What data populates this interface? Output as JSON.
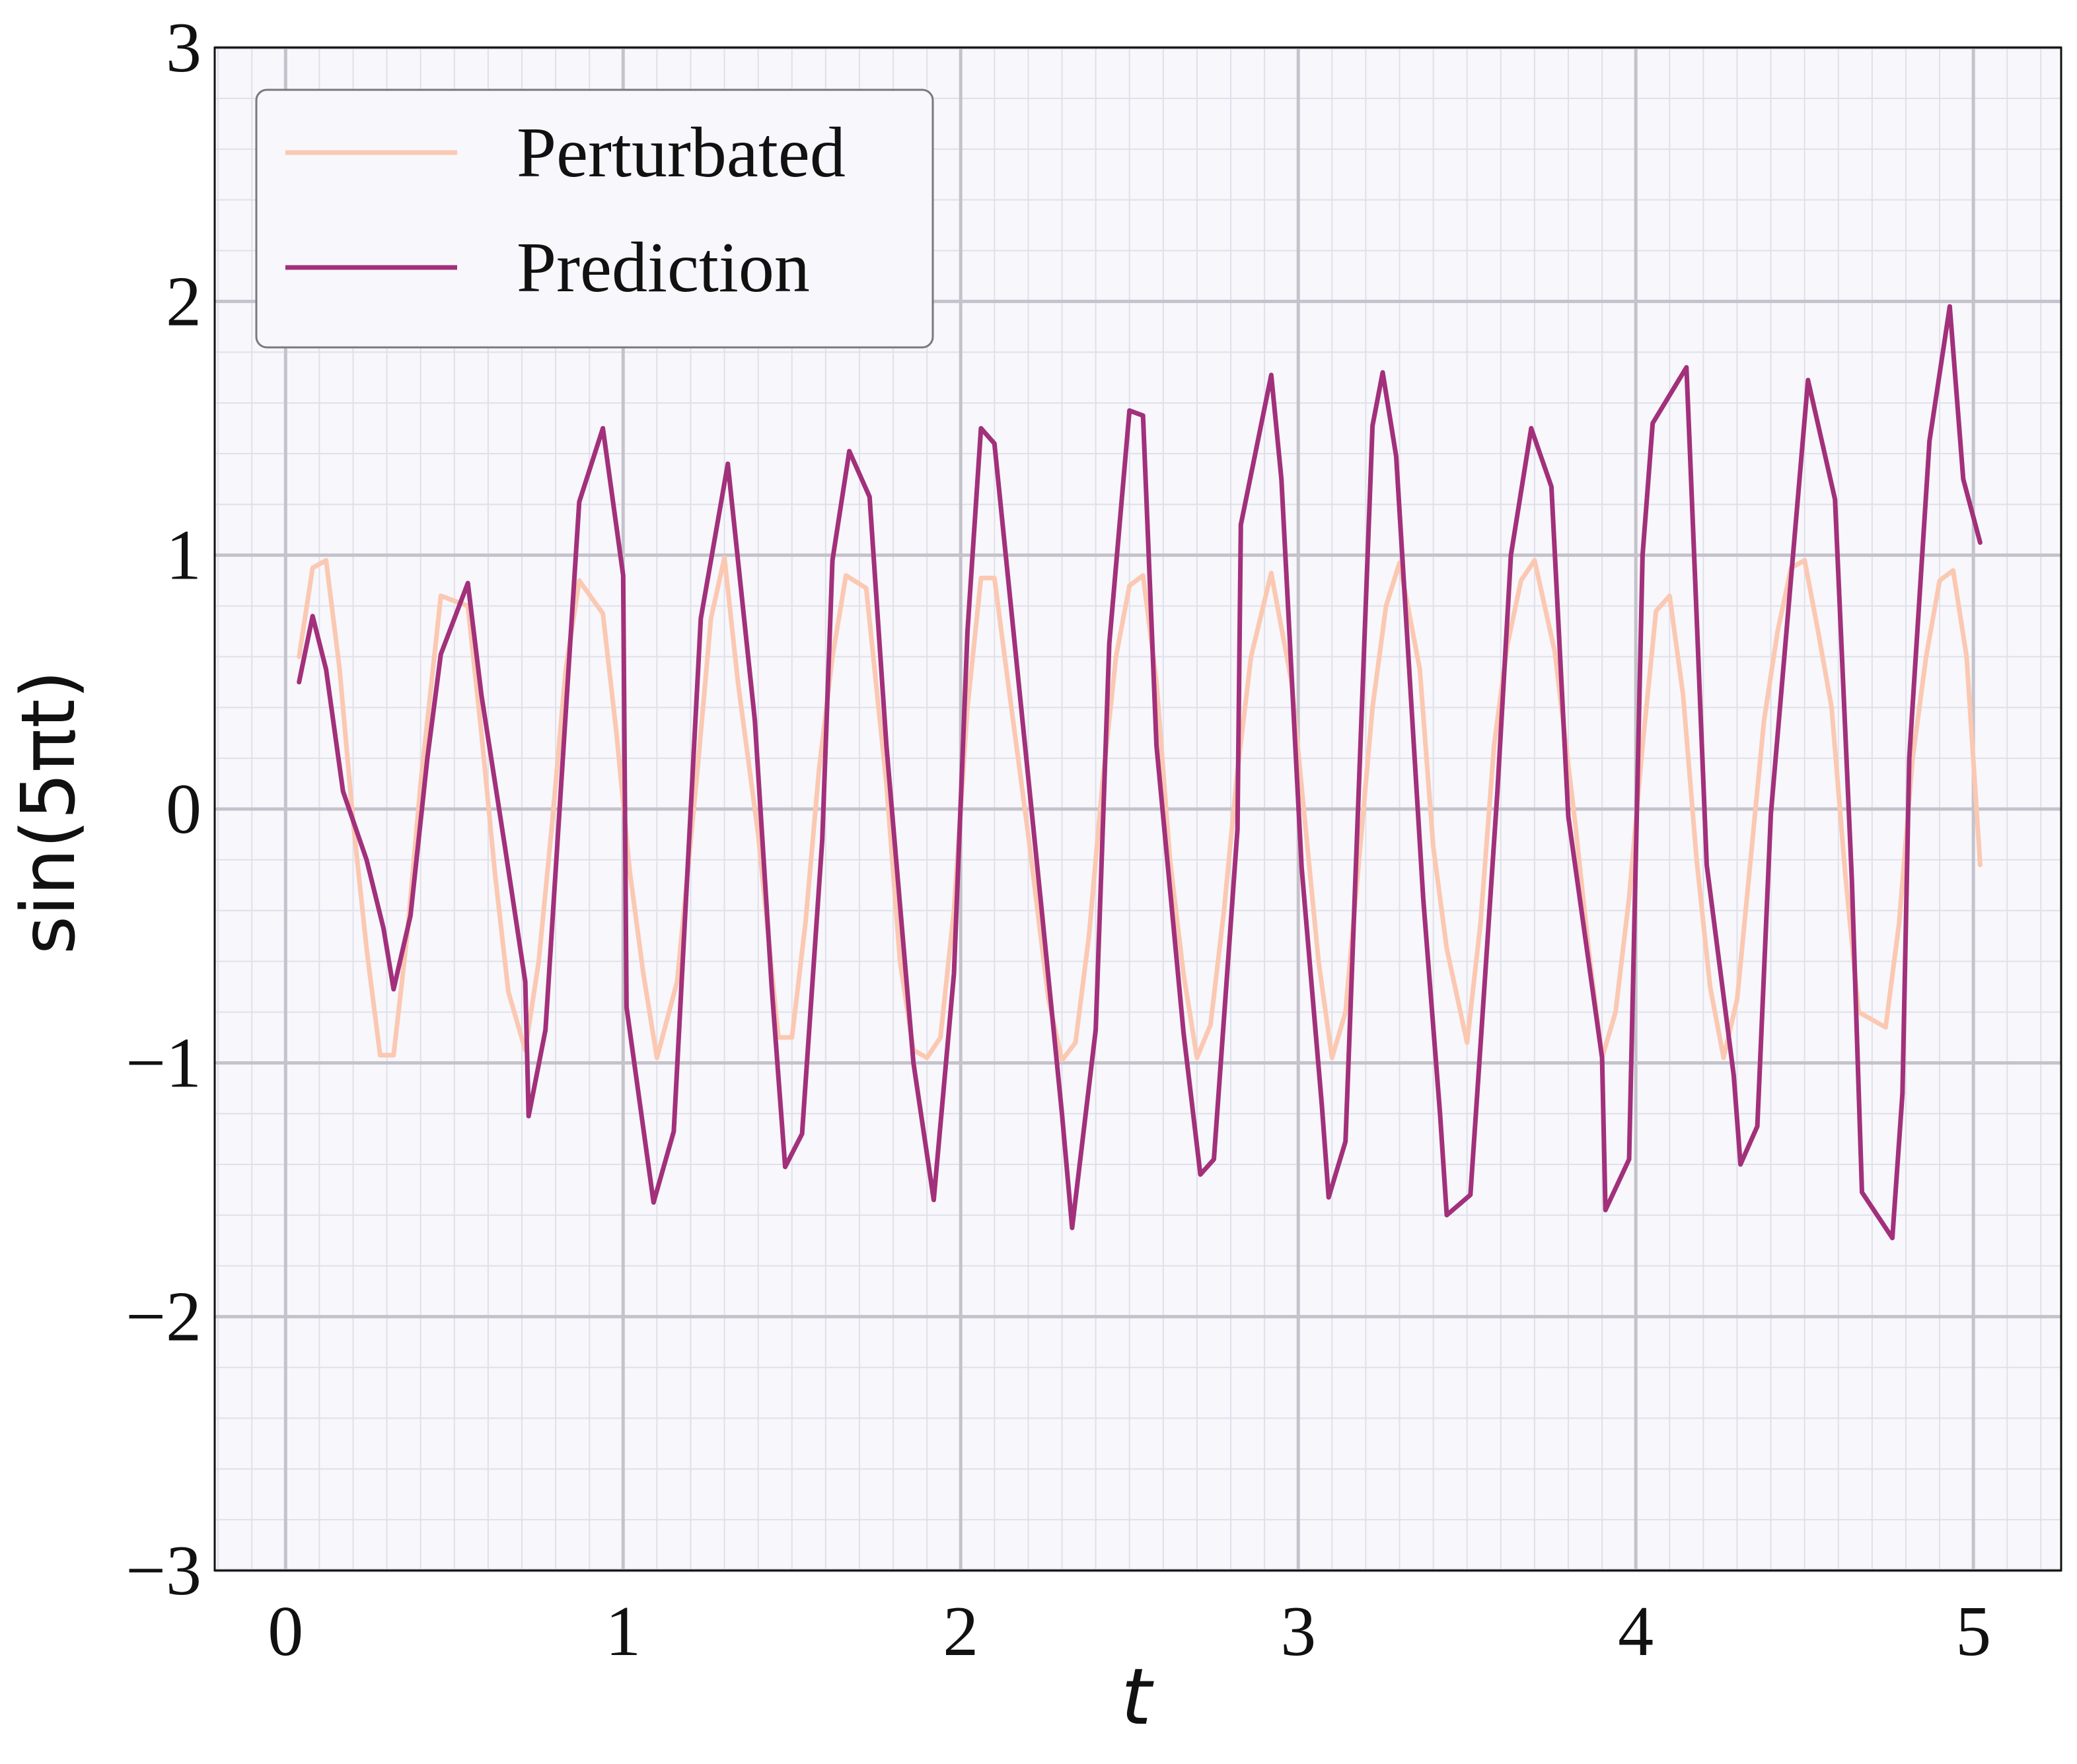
{
  "chart_data": {
    "type": "line",
    "xlabel": "t",
    "ylabel": "sin(5πt)",
    "xlim": [
      -0.21,
      5.26
    ],
    "ylim": [
      -3,
      3
    ],
    "xticks": [
      0,
      1,
      2,
      3,
      4,
      5
    ],
    "yticks": [
      -3,
      -2,
      -1,
      0,
      1,
      2,
      3
    ],
    "xtick_labels": [
      "0",
      "1",
      "2",
      "3",
      "4",
      "5"
    ],
    "ytick_labels": [
      "−3",
      "−2",
      "−1",
      "0",
      "1",
      "2",
      "3"
    ],
    "grid": true,
    "minor_grid": true,
    "legend_position": "top-left",
    "background_color": "#f7f7fc",
    "series": [
      {
        "name": "Perturbated",
        "color": "#fbc8b2",
        "x": [
          0.04,
          0.08,
          0.12,
          0.16,
          0.2,
          0.24,
          0.28,
          0.32,
          0.36,
          0.4,
          0.46,
          0.54,
          0.58,
          0.62,
          0.66,
          0.71,
          0.75,
          0.79,
          0.83,
          0.87,
          0.94,
          0.98,
          1.02,
          1.06,
          1.1,
          1.16,
          1.22,
          1.26,
          1.3,
          1.34,
          1.4,
          1.46,
          1.5,
          1.54,
          1.58,
          1.62,
          1.66,
          1.72,
          1.78,
          1.82,
          1.86,
          1.9,
          1.94,
          1.98,
          2.02,
          2.06,
          2.1,
          2.14,
          2.2,
          2.26,
          2.3,
          2.34,
          2.38,
          2.42,
          2.46,
          2.5,
          2.54,
          2.58,
          2.62,
          2.66,
          2.7,
          2.74,
          2.78,
          2.82,
          2.86,
          2.92,
          2.98,
          3.02,
          3.06,
          3.1,
          3.14,
          3.18,
          3.22,
          3.26,
          3.3,
          3.36,
          3.4,
          3.44,
          3.5,
          3.54,
          3.58,
          3.62,
          3.66,
          3.7,
          3.76,
          3.82,
          3.86,
          3.9,
          3.94,
          3.98,
          4.02,
          4.06,
          4.1,
          4.14,
          4.18,
          4.22,
          4.26,
          4.3,
          4.34,
          4.38,
          4.42,
          4.46,
          4.5,
          4.54,
          4.58,
          4.62,
          4.66,
          4.74,
          4.78,
          4.82,
          4.86,
          4.9,
          4.94,
          4.98,
          5.02
        ],
        "y": [
          0.6,
          0.95,
          0.98,
          0.55,
          -0.05,
          -0.55,
          -0.97,
          -0.97,
          -0.5,
          0.1,
          0.84,
          0.8,
          0.3,
          -0.25,
          -0.72,
          -0.95,
          -0.6,
          -0.05,
          0.55,
          0.9,
          0.77,
          0.3,
          -0.25,
          -0.65,
          -0.98,
          -0.68,
          0.15,
          0.75,
          0.99,
          0.5,
          -0.1,
          -0.9,
          -0.9,
          -0.45,
          0.15,
          0.6,
          0.92,
          0.87,
          0.1,
          -0.6,
          -0.95,
          -0.98,
          -0.9,
          -0.4,
          0.4,
          0.91,
          0.91,
          0.5,
          -0.1,
          -0.75,
          -0.99,
          -0.92,
          -0.5,
          0.1,
          0.6,
          0.88,
          0.92,
          0.5,
          -0.2,
          -0.65,
          -0.98,
          -0.85,
          -0.4,
          0.15,
          0.6,
          0.93,
          0.5,
          -0.05,
          -0.6,
          -0.98,
          -0.8,
          -0.2,
          0.4,
          0.8,
          0.97,
          0.55,
          -0.15,
          -0.55,
          -0.92,
          -0.45,
          0.25,
          0.65,
          0.9,
          0.98,
          0.62,
          -0.05,
          -0.55,
          -0.98,
          -0.8,
          -0.35,
          0.25,
          0.78,
          0.84,
          0.45,
          -0.2,
          -0.7,
          -0.98,
          -0.75,
          -0.2,
          0.35,
          0.7,
          0.95,
          0.98,
          0.7,
          0.4,
          -0.25,
          -0.8,
          -0.86,
          -0.45,
          0.2,
          0.6,
          0.9,
          0.94,
          0.6,
          -0.22
        ]
      },
      {
        "name": "Prediction",
        "color": "#a2307a",
        "x": [
          0.04,
          0.08,
          0.12,
          0.17,
          0.24,
          0.29,
          0.32,
          0.37,
          0.42,
          0.46,
          0.54,
          0.58,
          0.65,
          0.71,
          0.72,
          0.77,
          0.87,
          0.94,
          1.0,
          1.01,
          1.09,
          1.15,
          1.23,
          1.31,
          1.39,
          1.44,
          1.48,
          1.53,
          1.59,
          1.62,
          1.67,
          1.73,
          1.78,
          1.86,
          1.92,
          1.98,
          2.02,
          2.06,
          2.1,
          2.24,
          2.3,
          2.33,
          2.4,
          2.44,
          2.5,
          2.54,
          2.58,
          2.66,
          2.71,
          2.75,
          2.82,
          2.83,
          2.92,
          2.95,
          3.01,
          3.07,
          3.09,
          3.14,
          3.22,
          3.25,
          3.29,
          3.37,
          3.42,
          3.44,
          3.51,
          3.54,
          3.59,
          3.63,
          3.69,
          3.75,
          3.8,
          3.9,
          3.91,
          3.98,
          4.02,
          4.05,
          4.15,
          4.16,
          4.21,
          4.29,
          4.31,
          4.36,
          4.4,
          4.49,
          4.51,
          4.59,
          4.64,
          4.67,
          4.76,
          4.79,
          4.81,
          4.87,
          4.93,
          4.97,
          5.02
        ],
        "y": [
          0.5,
          0.76,
          0.55,
          0.07,
          -0.2,
          -0.47,
          -0.71,
          -0.42,
          0.2,
          0.61,
          0.89,
          0.45,
          -0.15,
          -0.68,
          -1.21,
          -0.87,
          1.21,
          1.5,
          0.92,
          -0.78,
          -1.55,
          -1.27,
          0.75,
          1.36,
          0.35,
          -0.7,
          -1.41,
          -1.28,
          -0.12,
          0.98,
          1.41,
          1.23,
          0.25,
          -1.0,
          -1.54,
          -0.65,
          0.7,
          1.5,
          1.44,
          -0.4,
          -1.2,
          -1.65,
          -0.87,
          0.65,
          1.57,
          1.55,
          0.25,
          -0.88,
          -1.44,
          -1.38,
          -0.08,
          1.12,
          1.71,
          1.3,
          -0.23,
          -1.17,
          -1.53,
          -1.31,
          1.51,
          1.72,
          1.39,
          -0.35,
          -1.2,
          -1.6,
          -1.52,
          -0.93,
          0.07,
          1.0,
          1.5,
          1.27,
          -0.03,
          -0.98,
          -1.58,
          -1.38,
          1.0,
          1.52,
          1.74,
          1.42,
          -0.22,
          -1.05,
          -1.4,
          -1.25,
          -0.02,
          1.38,
          1.69,
          1.22,
          -0.28,
          -1.51,
          -1.69,
          -1.12,
          0.2,
          1.45,
          1.98,
          1.3,
          1.05
        ]
      }
    ]
  }
}
